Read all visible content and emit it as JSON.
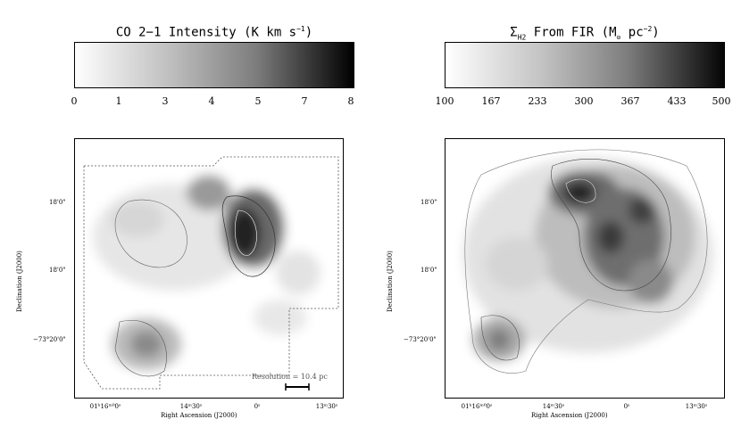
{
  "left": {
    "title_main": "CO 2−1 Intensity (K km s",
    "title_exp": "−1",
    "title_tail": ")",
    "ticks": [
      "0",
      "1",
      "3",
      "4",
      "5",
      "7",
      "8"
    ],
    "y_ticks": [
      "18'0\"",
      "18'0\"",
      "−73°20'0\""
    ],
    "x_ticks": [
      "01ʰ16ᵐ⁰0ˢ",
      "14ᵐ30ˢ",
      "0ˢ",
      "13ᵐ30ˢ"
    ],
    "x_label": "Right Ascension (J2000)",
    "y_label": "Declination (J2000)",
    "resolution": "Resolution = 10.4 pc"
  },
  "right": {
    "title_sigma": "Σ",
    "title_sub": "H2",
    "title_mid": " From FIR (M",
    "title_sun": "⊙",
    "title_unit": " pc",
    "title_exp": "−2",
    "title_tail": ")",
    "ticks": [
      "100",
      "167",
      "233",
      "300",
      "367",
      "433",
      "500"
    ],
    "y_ticks": [
      "18'0\"",
      "18'0\"",
      "−73°20'0\""
    ],
    "x_ticks": [
      "01ʰ16ᵐ⁰0ˢ",
      "14ᵐ30ˢ",
      "0ˢ",
      "13ᵐ30ˢ"
    ],
    "x_label": "Right Ascension (J2000)",
    "y_label": "Declination (J2000)"
  }
}
